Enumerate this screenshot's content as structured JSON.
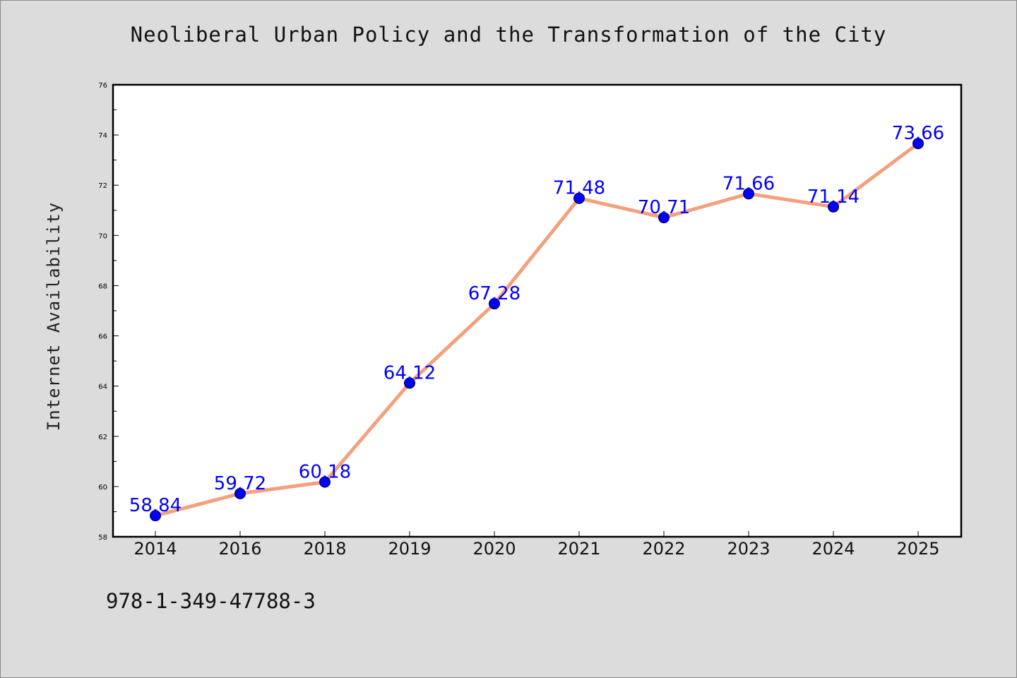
{
  "colors": {
    "background": "#dcdcdc",
    "plot_background": "#ffffff",
    "line": "#f4a07e",
    "marker": "#0000ff",
    "data_label": "#0000ff"
  },
  "isbn": "978-1-349-47788-3",
  "chart_data": {
    "type": "line",
    "title": "Neoliberal Urban Policy and the Transformation of the City",
    "xlabel": "",
    "ylabel": "Internet Availability",
    "categories": [
      "2014",
      "2016",
      "2018",
      "2019",
      "2020",
      "2021",
      "2022",
      "2023",
      "2024",
      "2025"
    ],
    "series": [
      {
        "values": [
          58.84,
          59.72,
          60.18,
          64.12,
          67.28,
          71.48,
          70.71,
          71.66,
          71.14,
          73.66
        ],
        "labels": [
          "58.84",
          "59.72",
          "60.18",
          "64.12",
          "67.28",
          "71.48",
          "70.71",
          "71.66",
          "71.14",
          "73.66"
        ]
      }
    ],
    "ylim": [
      58,
      76
    ],
    "yticks": [
      58,
      60,
      62,
      64,
      66,
      68,
      70,
      72,
      74,
      76
    ],
    "grid": false,
    "legend": "none"
  }
}
